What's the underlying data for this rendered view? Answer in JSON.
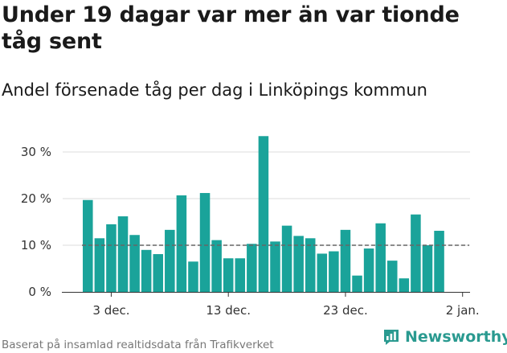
{
  "title": "Under 19 dagar var mer än var tionde tåg sent",
  "subtitle": "Andel försenade tåg per dag i Linköpings kommun",
  "footer": "Baserat på insamlad realtidsdata från Trafikverket",
  "brand": {
    "name": "Newsworthy",
    "icon": "newsworthy-logo-icon"
  },
  "colors": {
    "bar": "#1aa39a",
    "reference_line": "#666666",
    "grid": "#dddddd",
    "axis": "#333333",
    "brand": "#2a9a90"
  },
  "chart_data": {
    "type": "bar",
    "x": [
      "2022-12-01",
      "2022-12-02",
      "2022-12-03",
      "2022-12-04",
      "2022-12-05",
      "2022-12-06",
      "2022-12-07",
      "2022-12-08",
      "2022-12-09",
      "2022-12-10",
      "2022-12-11",
      "2022-12-12",
      "2022-12-13",
      "2022-12-14",
      "2022-12-15",
      "2022-12-16",
      "2022-12-17",
      "2022-12-18",
      "2022-12-19",
      "2022-12-20",
      "2022-12-21",
      "2022-12-22",
      "2022-12-23",
      "2022-12-24",
      "2022-12-25",
      "2022-12-26",
      "2022-12-27",
      "2022-12-28",
      "2022-12-29",
      "2022-12-30",
      "2022-12-31"
    ],
    "values": [
      19.7,
      11.5,
      14.5,
      16.2,
      12.2,
      9.0,
      8.1,
      13.3,
      20.7,
      6.5,
      21.2,
      11.1,
      7.2,
      7.2,
      10.3,
      33.4,
      10.8,
      14.2,
      12.0,
      11.5,
      8.2,
      8.7,
      13.3,
      3.5,
      9.3,
      14.7,
      6.7,
      2.9,
      16.6,
      10.0,
      13.1
    ],
    "ylim": [
      0,
      35
    ],
    "yticks": [
      0,
      10,
      20,
      30
    ],
    "ytick_labels": [
      "0 %",
      "10 %",
      "20 %",
      "30 %"
    ],
    "xtick_positions": [
      "2022-12-03",
      "2022-12-13",
      "2022-12-23",
      "2023-01-02"
    ],
    "xtick_labels": [
      "3 dec.",
      "13 dec.",
      "23 dec.",
      "2 jan."
    ],
    "reference_line": {
      "value": 10,
      "style": "dashed"
    },
    "grid": true,
    "legend": "none"
  }
}
